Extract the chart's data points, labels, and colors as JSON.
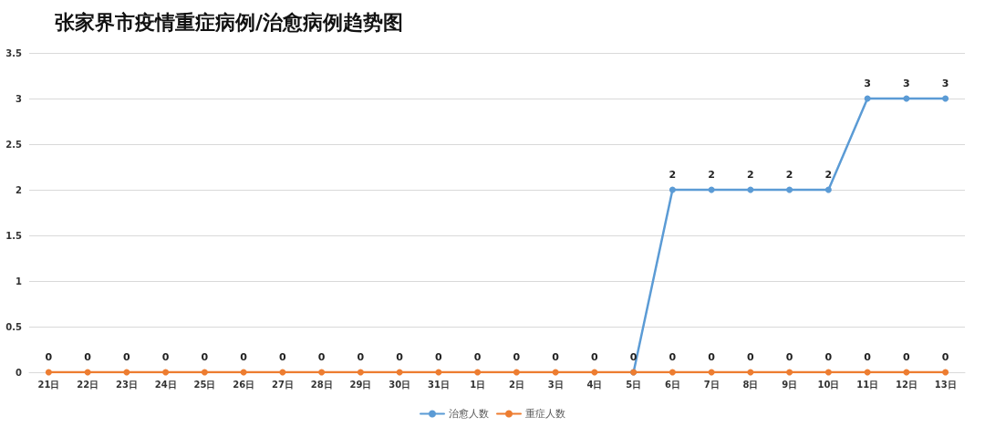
{
  "chart_data": {
    "type": "line",
    "title": "张家界市疫情重症病例/治愈病例趋势图",
    "categories": [
      "21日",
      "22日",
      "23日",
      "24日",
      "25日",
      "26日",
      "27日",
      "28日",
      "29日",
      "30日",
      "31日",
      "1日",
      "2日",
      "3日",
      "4日",
      "5日",
      "6日",
      "7日",
      "8日",
      "9日",
      "10日",
      "11日",
      "12日",
      "13日"
    ],
    "series": [
      {
        "name": "治愈人数",
        "color": "#5b9bd5",
        "values": [
          null,
          null,
          null,
          null,
          null,
          null,
          null,
          null,
          null,
          null,
          null,
          null,
          null,
          null,
          null,
          0,
          2,
          2,
          2,
          2,
          2,
          3,
          3,
          3
        ],
        "value_labels": [
          null,
          null,
          null,
          null,
          null,
          null,
          null,
          null,
          null,
          null,
          null,
          null,
          null,
          null,
          null,
          null,
          "2",
          "2",
          "2",
          "2",
          "2",
          "3",
          "3",
          "3"
        ]
      },
      {
        "name": "重症人数",
        "color": "#ed7d31",
        "values": [
          0,
          0,
          0,
          0,
          0,
          0,
          0,
          0,
          0,
          0,
          0,
          0,
          0,
          0,
          0,
          0,
          0,
          0,
          0,
          0,
          0,
          0,
          0,
          0
        ],
        "value_labels": [
          "0",
          "0",
          "0",
          "0",
          "0",
          "0",
          "0",
          "0",
          "0",
          "0",
          "0",
          "0",
          "0",
          "0",
          "0",
          "0",
          "0",
          "0",
          "0",
          "0",
          "0",
          "0",
          "0",
          "0"
        ]
      }
    ],
    "ylim": [
      0,
      3.5
    ],
    "yticks": [
      0,
      0.5,
      1,
      1.5,
      2,
      2.5,
      3,
      3.5
    ],
    "grid": "y",
    "legend": "bottom",
    "marker": "circle",
    "line_style": "solid"
  }
}
